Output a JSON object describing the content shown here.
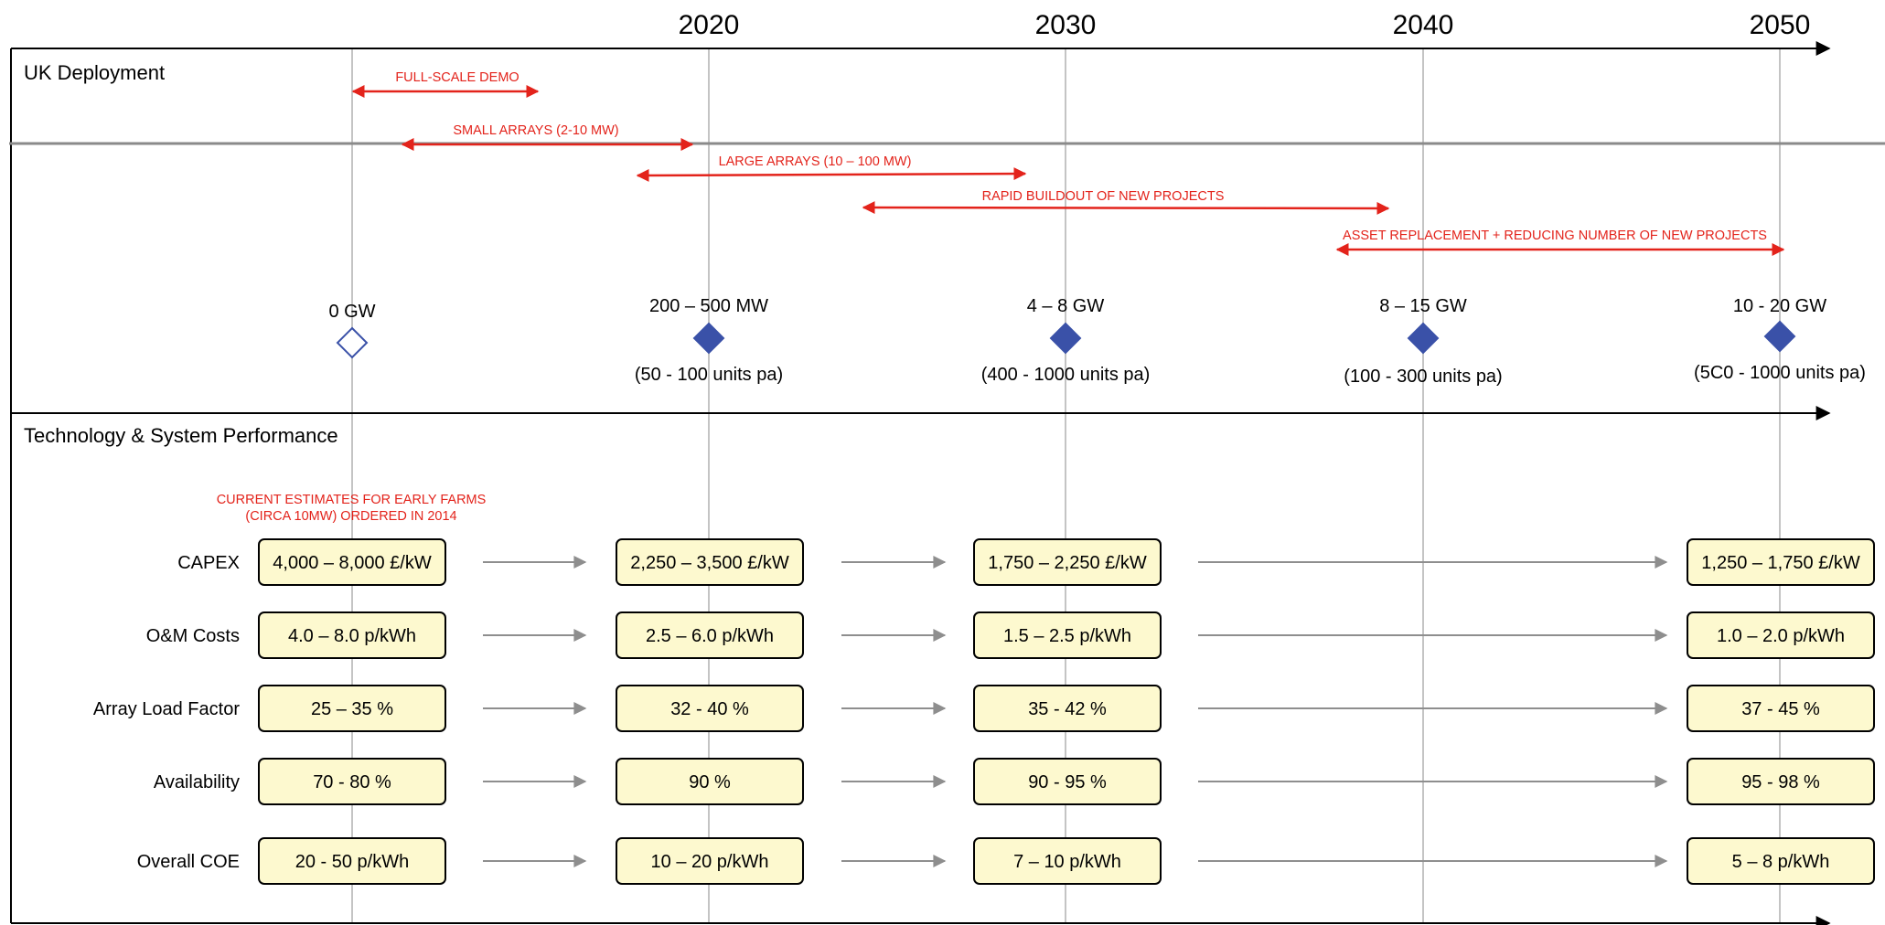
{
  "title_fragment": "",
  "years": [
    "2020",
    "2030",
    "2040",
    "2050"
  ],
  "sections": {
    "deployment": "UK Deployment",
    "performance": "Technology & System Performance"
  },
  "phases": [
    {
      "label": "FULL-SCALE DEMO"
    },
    {
      "label": "SMALL ARRAYS (2-10 MW)"
    },
    {
      "label": "LARGE ARRAYS (10 – 100  MW)"
    },
    {
      "label": "RAPID BUILDOUT OF NEW PROJECTS"
    },
    {
      "label": "ASSET REPLACEMENT + REDUCING NUMBER OF NEW PROJECTS"
    }
  ],
  "milestones": [
    {
      "capacity": "0 GW",
      "units": "",
      "filled": false
    },
    {
      "capacity": "200 – 500 MW",
      "units": "(50 - 100 units pa)",
      "filled": true
    },
    {
      "capacity": "4 – 8 GW",
      "units": "(400 - 1000 units pa)",
      "filled": true
    },
    {
      "capacity": "8 – 15 GW",
      "units": "(100 - 300 units pa)",
      "filled": true
    },
    {
      "capacity": "10 - 20 GW",
      "units": "(5C0 - 1000 units pa)",
      "filled": true
    }
  ],
  "note": [
    "CURRENT ESTIMATES FOR EARLY FARMS",
    "(CIRCA 10MW) ORDERED IN 2014"
  ],
  "metrics": [
    {
      "label": "CAPEX",
      "values": [
        "4,000 – 8,000 £/kW",
        "2,250 – 3,500 £/kW",
        "1,750 – 2,250 £/kW",
        "1,250 – 1,750 £/kW"
      ]
    },
    {
      "label": "O&M Costs",
      "values": [
        "4.0 – 8.0 p/kWh",
        "2.5 – 6.0 p/kWh",
        "1.5 – 2.5 p/kWh",
        "1.0 – 2.0 p/kWh"
      ]
    },
    {
      "label": "Array Load Factor",
      "values": [
        "25 – 35 %",
        "32 - 40 %",
        "35 - 42 %",
        "37 - 45 %"
      ]
    },
    {
      "label": "Availability",
      "values": [
        "70 - 80 %",
        "90 %",
        "90 - 95 %",
        "95 - 98 %"
      ]
    },
    {
      "label": "Overall COE",
      "values": [
        "20 - 50 p/kWh",
        "10 – 20 p/kWh",
        "7 – 10 p/kWh",
        "5 – 8 p/kWh"
      ]
    }
  ],
  "colors": {
    "phase_arrow": "#e3231b",
    "milestone": "#3a51a8",
    "box_fill": "#fdf9cf",
    "gray_arrow": "#8e8e8e",
    "gridline": "#c4c4c4",
    "title": "#f26b21"
  }
}
